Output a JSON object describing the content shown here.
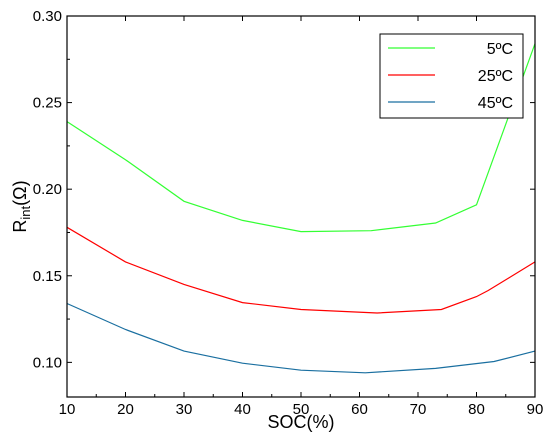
{
  "chart_data": {
    "type": "line",
    "title": "",
    "xlabel": "SOC(%)",
    "ylabel": {
      "main": "R",
      "sub": "int",
      "rest": "(Ω)"
    },
    "xlim": [
      10,
      90
    ],
    "ylim": [
      0.08,
      0.3
    ],
    "xticks": [
      10,
      20,
      30,
      40,
      50,
      60,
      70,
      80,
      90
    ],
    "yticks": [
      0.1,
      0.15,
      0.2,
      0.25,
      0.3
    ],
    "ytick_labels": [
      "0.10",
      "0.15",
      "0.20",
      "0.25",
      "0.30"
    ],
    "grid": false,
    "legend_position": "top-right",
    "series": [
      {
        "name": "5ºC",
        "color": "#33ff33",
        "x": [
          10,
          20,
          30,
          40,
          50,
          62,
          73,
          80,
          90
        ],
        "y": [
          0.239,
          0.217,
          0.193,
          0.182,
          0.1755,
          0.176,
          0.1805,
          0.191,
          0.284
        ]
      },
      {
        "name": "25ºC",
        "color": "#ff0000",
        "x": [
          10,
          20,
          30,
          40,
          50,
          63,
          74,
          80,
          82,
          90
        ],
        "y": [
          0.178,
          0.158,
          0.145,
          0.1345,
          0.1305,
          0.1285,
          0.1305,
          0.138,
          0.1415,
          0.158
        ]
      },
      {
        "name": "45ºC",
        "color": "#1a6fa0",
        "x": [
          10,
          20,
          30,
          40,
          50,
          61,
          73,
          83,
          90
        ],
        "y": [
          0.134,
          0.119,
          0.1065,
          0.0995,
          0.0955,
          0.094,
          0.0965,
          0.1005,
          0.1065
        ]
      }
    ]
  }
}
